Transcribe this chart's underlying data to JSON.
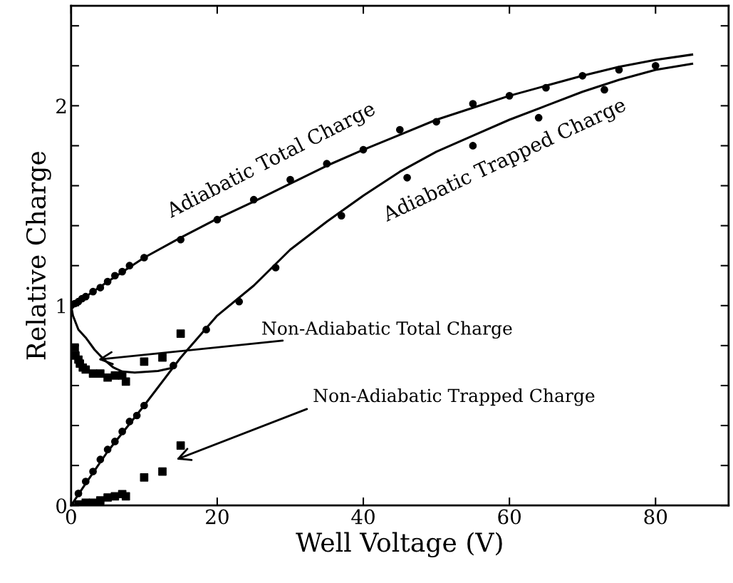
{
  "chart_data": {
    "type": "line",
    "xlabel": "Well Voltage (V)",
    "ylabel": "Relative Charge",
    "xlim": [
      0,
      90
    ],
    "ylim": [
      0,
      2.5
    ],
    "xticks": [
      0,
      20,
      40,
      60,
      80
    ],
    "yticks": [
      0,
      {
        "value": 0.2,
        "label": null
      },
      {
        "value": 0.4,
        "label": null
      },
      {
        "value": 0.6,
        "label": null
      },
      {
        "value": 0.8,
        "label": null
      },
      1,
      {
        "value": 1.2,
        "label": null
      },
      {
        "value": 1.4,
        "label": null
      },
      {
        "value": 1.6,
        "label": null
      },
      {
        "value": 1.8,
        "label": null
      },
      2,
      {
        "value": 2.2,
        "label": null
      },
      {
        "value": 2.4,
        "label": null
      }
    ],
    "grid": false,
    "legend": false,
    "series": [
      {
        "name": "Adiabatic Total Charge",
        "color": "#000000",
        "marker": "none",
        "x": [
          0,
          2,
          5,
          10,
          15,
          20,
          25,
          30,
          35,
          40,
          45,
          50,
          55,
          60,
          65,
          70,
          75,
          80,
          85
        ],
        "values": [
          1.0,
          1.045,
          1.12,
          1.24,
          1.34,
          1.435,
          1.52,
          1.61,
          1.7,
          1.78,
          1.855,
          1.93,
          1.99,
          2.05,
          2.1,
          2.15,
          2.195,
          2.23,
          2.256
        ]
      },
      {
        "type": "scatter",
        "color": "#000000",
        "marker": "circle",
        "x": [
          0,
          0.5,
          1,
          1.5,
          2,
          3,
          4,
          5,
          6,
          7,
          8,
          10,
          15,
          20,
          25,
          30,
          35,
          40,
          45,
          50,
          55,
          60,
          65,
          70,
          75,
          80
        ],
        "values": [
          1.0,
          1.01,
          1.02,
          1.035,
          1.045,
          1.07,
          1.09,
          1.12,
          1.15,
          1.17,
          1.2,
          1.24,
          1.33,
          1.43,
          1.53,
          1.63,
          1.71,
          1.78,
          1.88,
          1.92,
          2.01,
          2.05,
          2.09,
          2.15,
          2.18,
          2.2
        ]
      },
      {
        "name": "Adiabatic Trapped Charge",
        "color": "#000000",
        "marker": "none",
        "x": [
          0,
          2,
          5,
          10,
          15,
          20,
          25,
          30,
          35,
          40,
          45,
          50,
          55,
          60,
          65,
          70,
          75,
          80,
          85
        ],
        "values": [
          0,
          0.11,
          0.27,
          0.5,
          0.74,
          0.95,
          1.1,
          1.28,
          1.42,
          1.55,
          1.67,
          1.77,
          1.85,
          1.93,
          2.0,
          2.07,
          2.13,
          2.18,
          2.21
        ]
      },
      {
        "type": "scatter",
        "color": "#000000",
        "marker": "circle",
        "x": [
          0,
          1,
          2,
          3,
          4,
          5,
          6,
          7,
          8,
          9,
          10,
          14,
          18.5,
          23,
          28,
          37,
          46,
          55,
          64,
          73
        ],
        "values": [
          0,
          0.06,
          0.12,
          0.17,
          0.23,
          0.28,
          0.32,
          0.37,
          0.42,
          0.45,
          0.5,
          0.7,
          0.88,
          1.02,
          1.19,
          1.45,
          1.64,
          1.8,
          1.94,
          2.08
        ]
      },
      {
        "color": "#000000",
        "marker": "none",
        "x": [
          0,
          0.25,
          1,
          2,
          3.2,
          4.5,
          5.8,
          7,
          8.7,
          11.9,
          14
        ],
        "values": [
          1.0,
          0.95,
          0.88,
          0.84,
          0.78,
          0.73,
          0.69,
          0.67,
          0.665,
          0.673,
          0.69
        ]
      },
      {
        "type": "scatter",
        "color": "#000000",
        "marker": "square",
        "x": [
          0.5,
          0.6,
          1,
          1.2,
          1.6,
          2,
          3,
          4,
          5,
          6,
          7,
          7.5,
          10,
          12.5,
          15
        ],
        "values": [
          0.79,
          0.75,
          0.73,
          0.71,
          0.69,
          0.68,
          0.66,
          0.66,
          0.64,
          0.65,
          0.65,
          0.62,
          0.72,
          0.74,
          0.86
        ]
      },
      {
        "type": "scatter",
        "color": "#000000",
        "marker": "square",
        "x": [
          1,
          2,
          3,
          4,
          5,
          6,
          7,
          7.5,
          10,
          12.5,
          15
        ],
        "values": [
          0.005,
          0.014,
          0.014,
          0.025,
          0.04,
          0.046,
          0.057,
          0.046,
          0.14,
          0.17,
          0.3
        ]
      }
    ],
    "annotations": [
      {
        "text": "Non-Adiabatic Total Charge",
        "x": 3.7,
        "y": 0.73
      },
      "Non-Adiabatic Trapped Charge"
    ]
  }
}
